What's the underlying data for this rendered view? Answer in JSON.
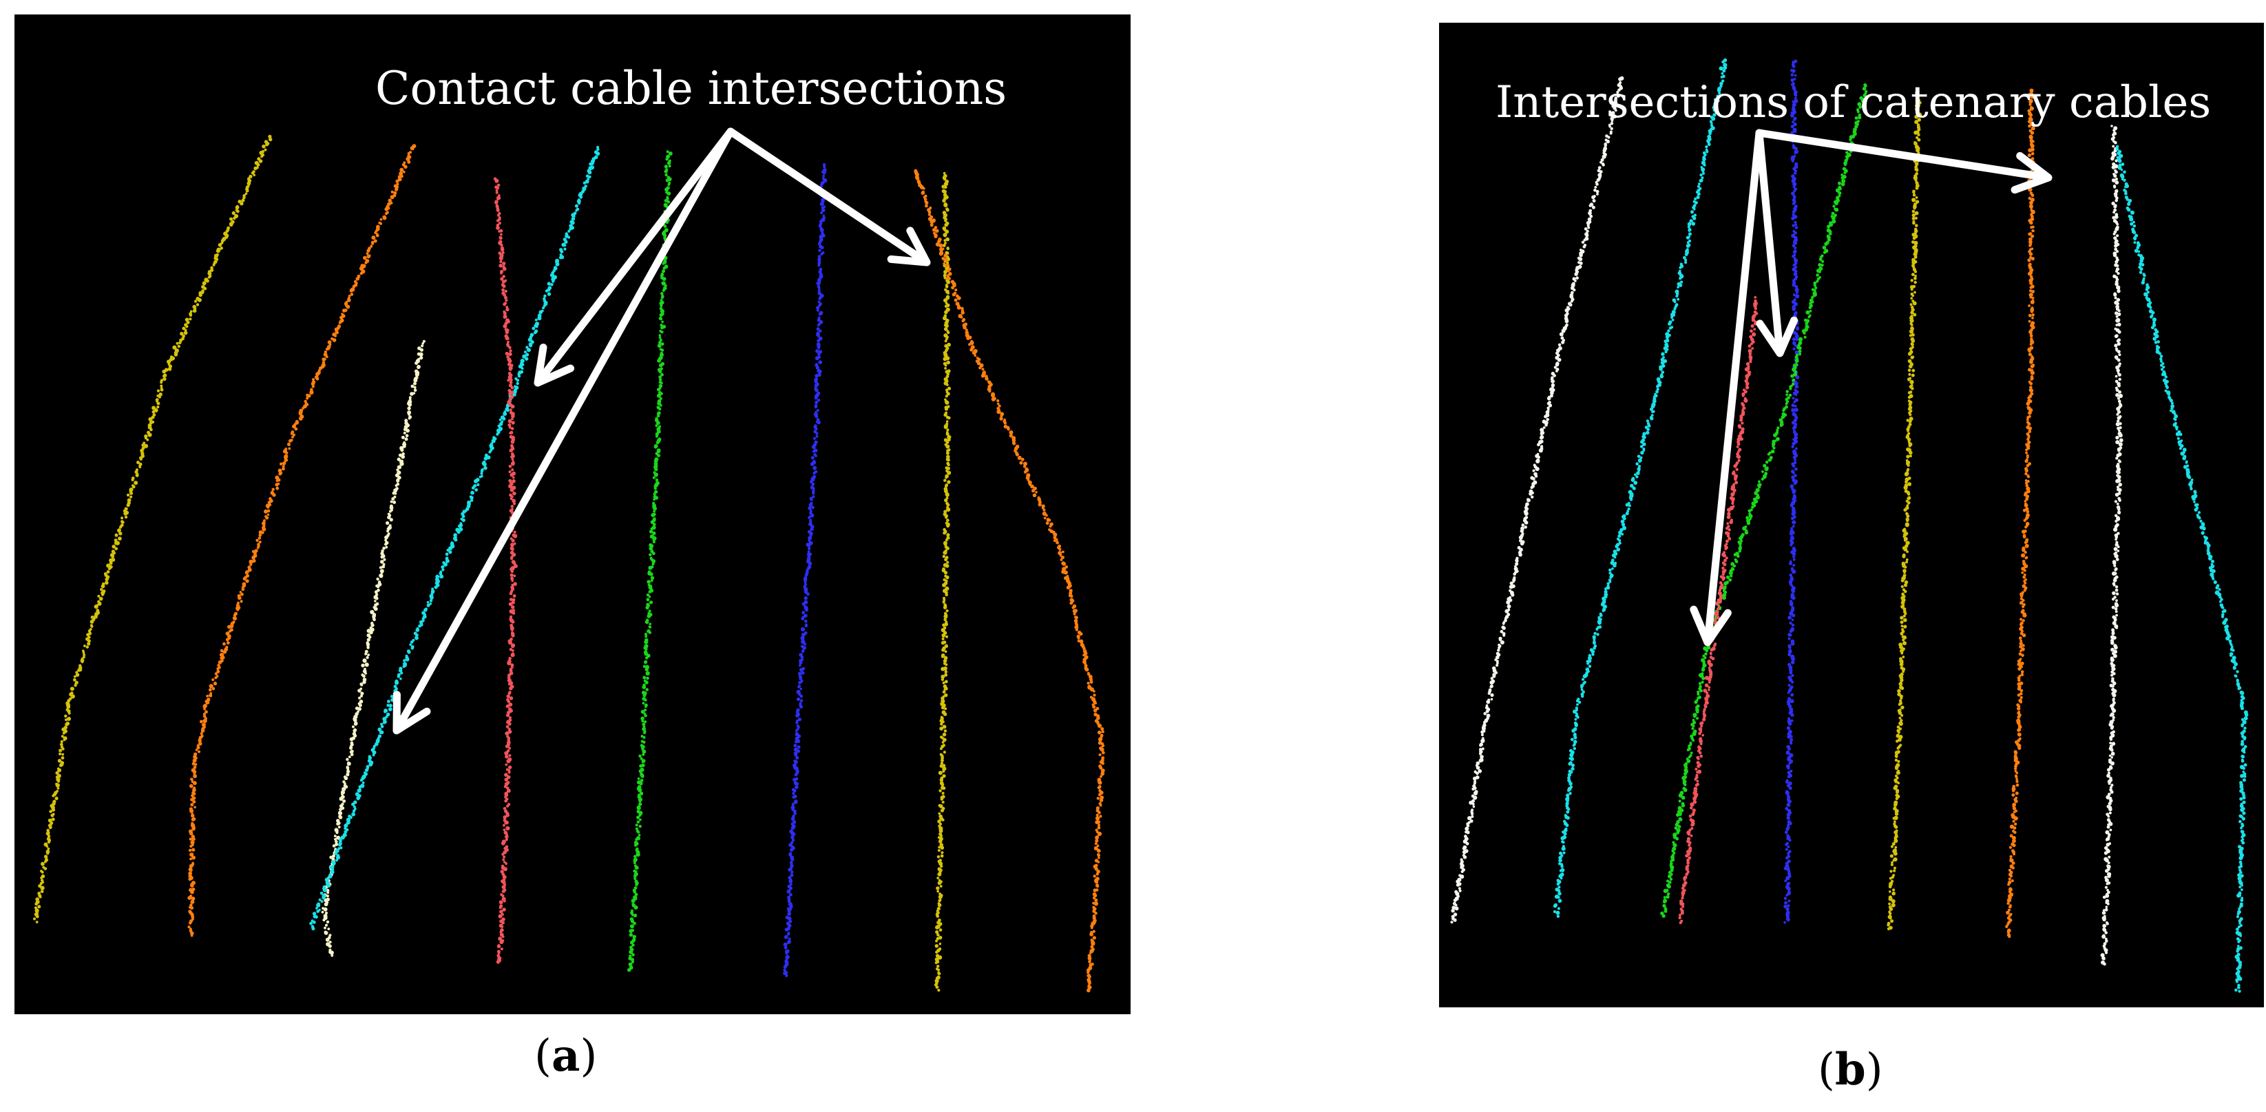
{
  "panels": [
    {
      "id": "a",
      "annotation": "Contact cable intersections",
      "caption_open": "(",
      "caption_letter": "a",
      "caption_close": ")"
    },
    {
      "id": "b",
      "annotation": "Intersections of catenary cables",
      "caption_open": "(",
      "caption_letter": "b",
      "caption_close": ")"
    }
  ],
  "colors": {
    "background": "#000000",
    "arrow": "#ffffff",
    "cable_yellow": "#d4c20a",
    "cable_orange": "#ff7f0f",
    "cable_cream": "#f5f2c8",
    "cable_cyan": "#19e0e8",
    "cable_red": "#f2545b",
    "cable_green": "#19d619",
    "cable_blue": "#2e2ef2",
    "cable_white": "#f4f4ee"
  }
}
